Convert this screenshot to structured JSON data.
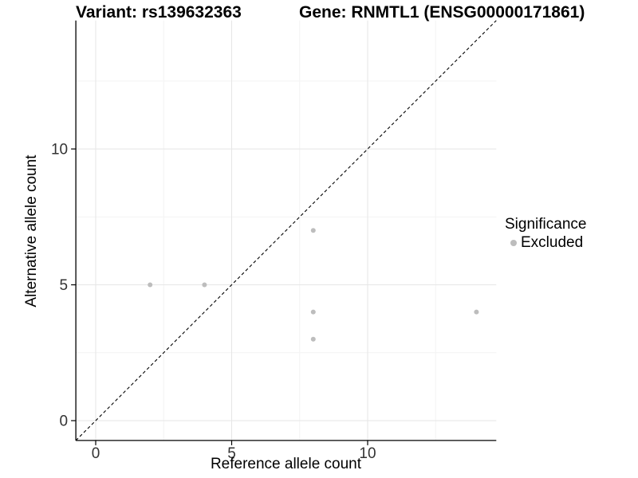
{
  "chart_data": {
    "type": "scatter",
    "title_left": "Variant: rs139632363",
    "title_right": "Gene: RNMTL1 (ENSG00000171861)",
    "xlabel": "Reference allele count",
    "ylabel": "Alternative allele count",
    "legend_title": "Significance",
    "legend_position": "right",
    "xlim": [
      -0.73,
      14.73
    ],
    "ylim": [
      -0.73,
      14.73
    ],
    "x_ticks": [
      0,
      5,
      10
    ],
    "y_ticks": [
      0,
      5,
      10
    ],
    "x_minor": [
      2.5,
      7.5,
      12.5
    ],
    "y_minor": [
      2.5,
      7.5,
      12.5
    ],
    "grid": true,
    "identity_line": {
      "style": "dashed",
      "from": [
        -0.73,
        -0.73
      ],
      "to": [
        14.73,
        14.73
      ],
      "color": "#000000"
    },
    "series": [
      {
        "name": "Excluded",
        "color": "#bdbdbd",
        "points": [
          {
            "x": 2,
            "y": 5
          },
          {
            "x": 4,
            "y": 5
          },
          {
            "x": 8,
            "y": 7
          },
          {
            "x": 8,
            "y": 4
          },
          {
            "x": 8,
            "y": 3
          },
          {
            "x": 14,
            "y": 4
          }
        ]
      }
    ],
    "colors": {
      "point": "#bdbdbd",
      "grid_major": "#e6e6e6",
      "grid_minor": "#f3f3f3",
      "axis": "#000000",
      "tick_text": "#333333"
    }
  }
}
